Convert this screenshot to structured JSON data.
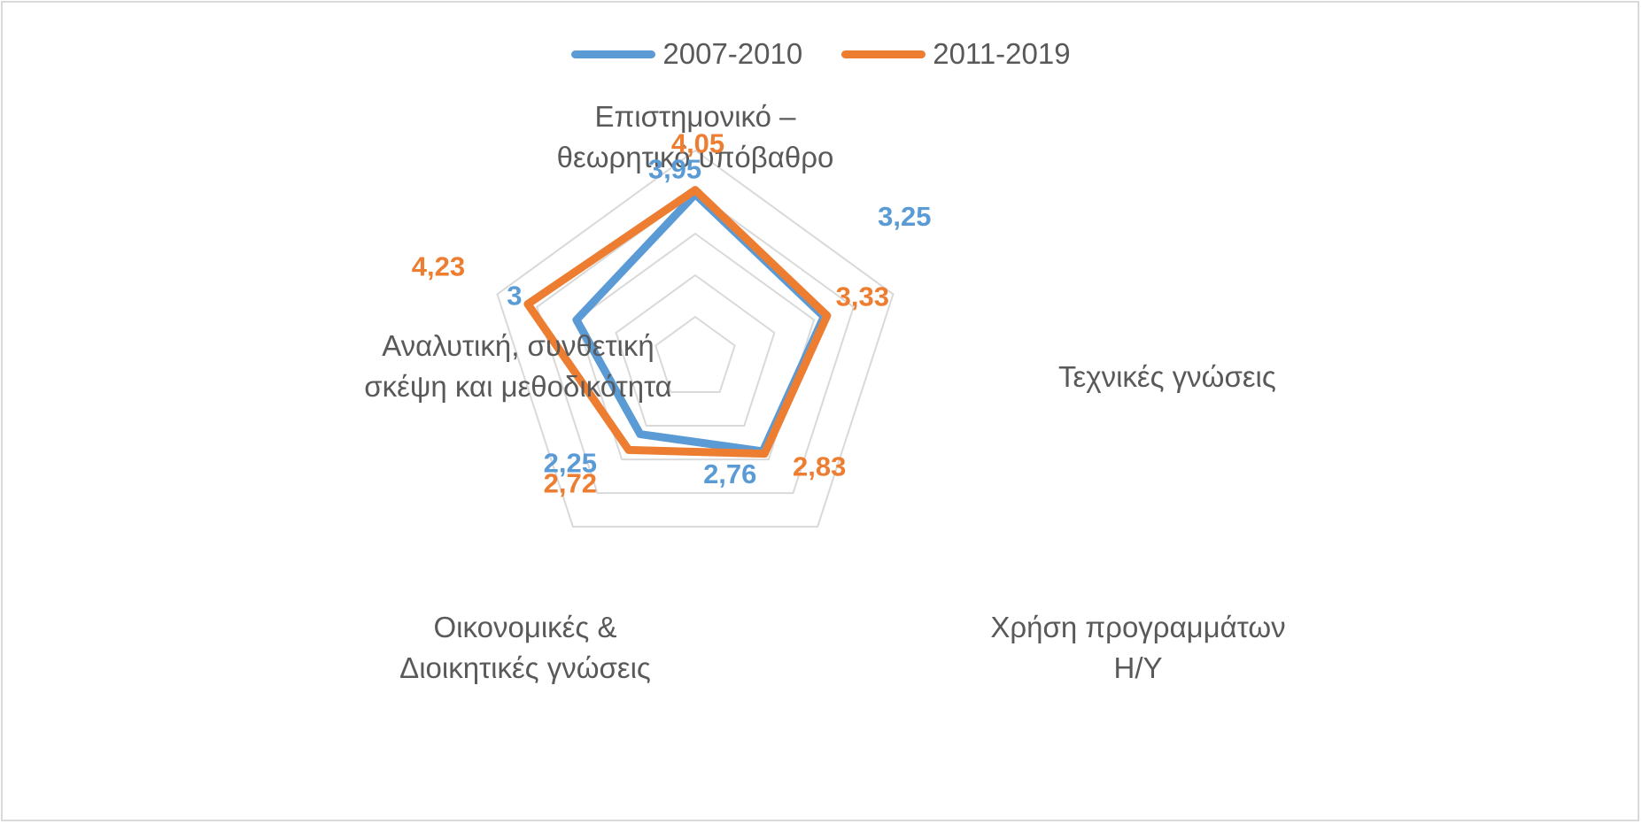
{
  "chart_data": {
    "type": "radar",
    "categories": [
      [
        "Επιστημονικό –",
        "θεωρητικό υπόβαθρο"
      ],
      [
        "Τεχνικές γνώσεις"
      ],
      [
        "Χρήση προγραμμάτων",
        "Η/Υ"
      ],
      [
        "Οικονομικές &",
        "Διοικητικές γνώσεις"
      ],
      [
        "Αναλυτική, συνθετική",
        "σκέψη και μεθοδικότητα"
      ]
    ],
    "series": [
      {
        "name": "2007-2010",
        "color": "#5b9bd5",
        "values": [
          3.95,
          3.25,
          2.76,
          2.25,
          3
        ],
        "labels": [
          "3,95",
          "3,25",
          "2,76",
          "2,25",
          "3"
        ]
      },
      {
        "name": "2011-2019",
        "color": "#ed7d31",
        "values": [
          4.05,
          3.33,
          2.83,
          2.72,
          4.23
        ],
        "labels": [
          "4,05",
          "3,33",
          "2,83",
          "2,72",
          "4,23"
        ]
      }
    ],
    "rlim": [
      0,
      5
    ],
    "grid": true,
    "legend_position": "top"
  }
}
